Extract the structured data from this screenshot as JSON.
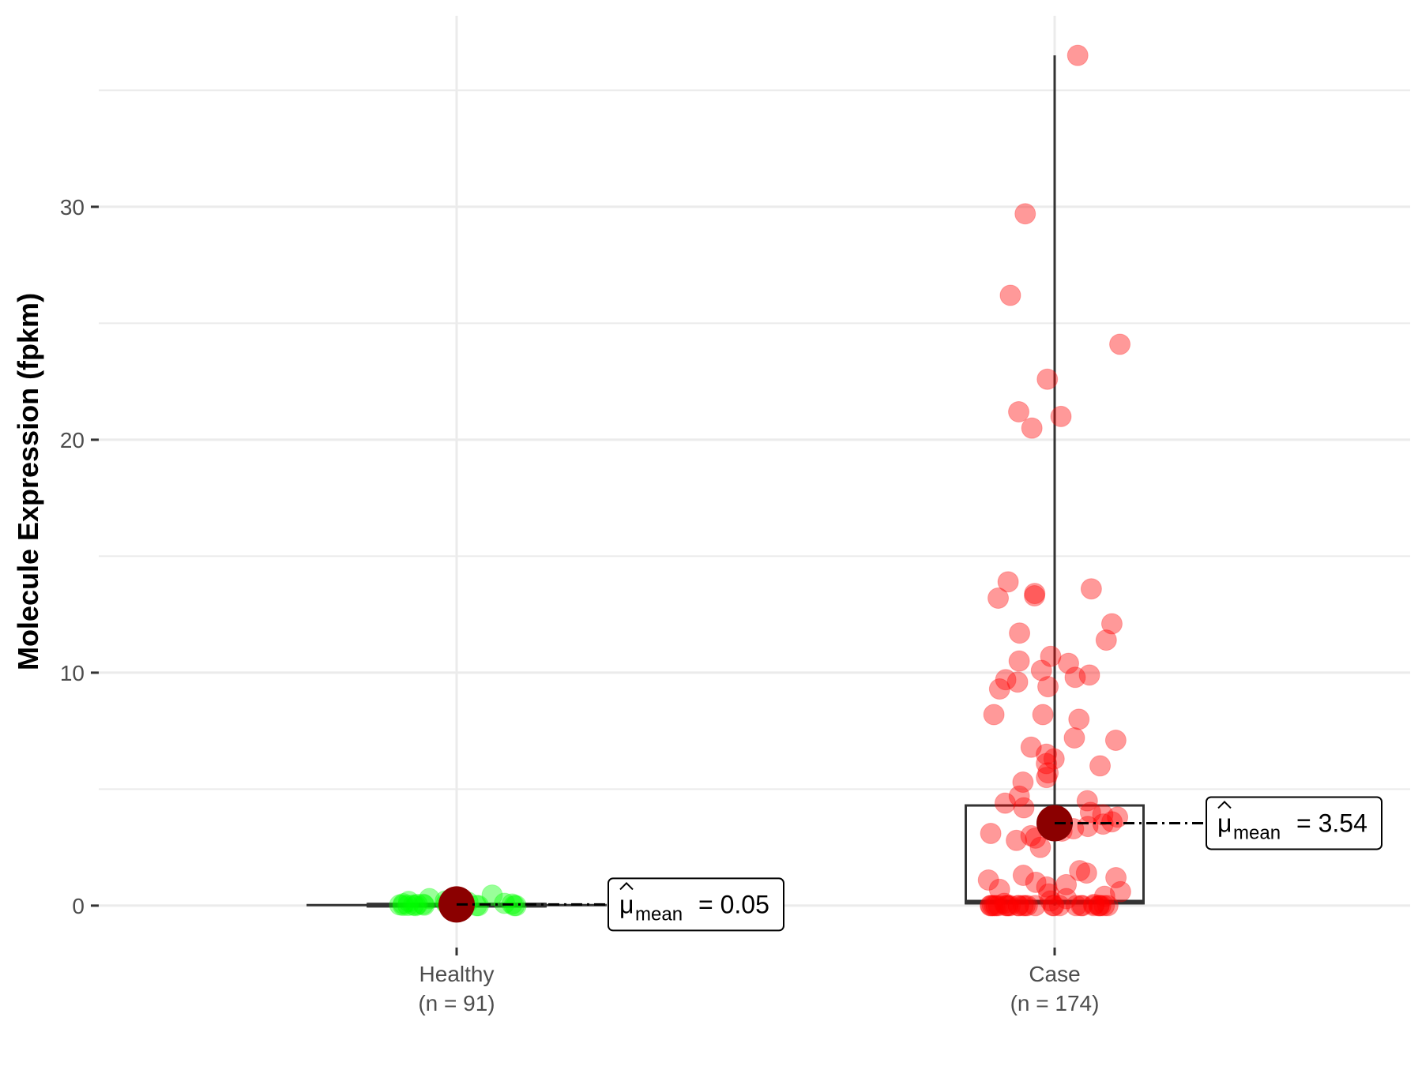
{
  "chart_data": {
    "type": "box",
    "ylabel": "Molecule Expression (fpkm)",
    "xlabel": "",
    "ylim": [
      -1.8,
      38.2
    ],
    "yticks": [
      0,
      10,
      20,
      30
    ],
    "grid": true,
    "mean_symbol": "μ",
    "mean_subscript": "mean",
    "groups": [
      {
        "name": "Healthy",
        "n_label": "(n = 91)",
        "color": "#00ff00",
        "box": {
          "min": 0.0,
          "q1": 0.0,
          "median": 0.02,
          "q3": 0.07,
          "max": 0.08
        },
        "mean": 0.05,
        "mean_label": "= 0.05",
        "points": [
          0.0,
          0.0,
          0.01,
          0.02,
          0.03,
          0.05,
          0.08,
          0.1,
          0.15,
          0.2,
          0.3,
          0.45,
          0.0,
          0.01,
          0.04,
          0.06,
          0.0,
          0.02,
          0.0,
          0.12,
          0.0,
          0.03,
          0.07,
          0.0,
          0.18,
          0.01,
          0.0,
          0.05,
          0.09,
          0.0
        ]
      },
      {
        "name": "Case",
        "n_label": "(n = 174)",
        "color": "#ff0000",
        "box": {
          "min": 0.0,
          "q1": 0.1,
          "median": 0.15,
          "q3": 4.3,
          "max": 36.5
        },
        "mean": 3.54,
        "mean_label": "= 3.54",
        "points": [
          36.5,
          29.7,
          26.2,
          24.1,
          22.6,
          21.2,
          21.0,
          20.5,
          13.9,
          13.6,
          13.4,
          13.3,
          13.2,
          12.1,
          11.7,
          11.4,
          10.7,
          10.5,
          10.4,
          10.1,
          9.9,
          9.8,
          9.7,
          9.6,
          9.4,
          9.3,
          8.2,
          8.2,
          8.0,
          7.2,
          7.1,
          6.8,
          6.5,
          6.3,
          6.1,
          6.0,
          5.7,
          5.5,
          5.3,
          4.7,
          4.5,
          4.4,
          4.2,
          4.0,
          3.9,
          3.8,
          3.6,
          3.5,
          3.4,
          3.3,
          3.2,
          3.1,
          3.0,
          2.9,
          2.8,
          2.5,
          1.5,
          1.4,
          1.3,
          1.2,
          1.1,
          1.0,
          0.9,
          0.8,
          0.7,
          0.6,
          0.5,
          0.4,
          0.3,
          0.2,
          0.1,
          0.05,
          0.0,
          0.0,
          0.0,
          0.0,
          0.0,
          0.0,
          0.0,
          0.0,
          0.0,
          0.0,
          0.0,
          0.0,
          0.0,
          0.0,
          0.0,
          0.0,
          0.0,
          0.0,
          0.0,
          0.0,
          0.0,
          0.0,
          0.0,
          0.0,
          0.0,
          0.0,
          0.0,
          0.0
        ]
      }
    ]
  }
}
